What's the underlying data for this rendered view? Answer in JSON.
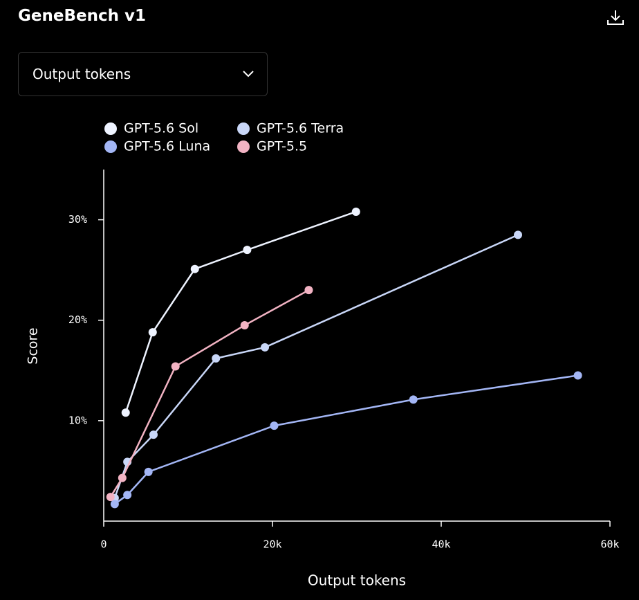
{
  "controls": {
    "metric": "Output tokens"
  },
  "chart_data": {
    "type": "line",
    "title": "GeneBench v1",
    "x_label": "Output tokens",
    "y_label": "Score",
    "xlim": [
      0,
      60000
    ],
    "ylim": [
      0,
      35
    ],
    "xticks": [
      0,
      {
        "value": 20000,
        "label": "20k"
      },
      {
        "value": 40000,
        "label": "40k"
      },
      {
        "value": 60000,
        "label": "60k"
      }
    ],
    "yticks": [
      {
        "value": 10,
        "label": "10%"
      },
      {
        "value": 20,
        "label": "20%"
      },
      {
        "value": 30,
        "label": "30%"
      }
    ],
    "series": [
      {
        "name": "GPT-5.6 Sol",
        "color": "#eef3ff",
        "x": [
          2600,
          5800,
          10800,
          17000,
          29900
        ],
        "values": [
          10.8,
          18.8,
          25.1,
          27.0,
          30.8
        ]
      },
      {
        "name": "GPT-5.6 Terra",
        "color": "#c9d7f8",
        "x": [
          1300,
          2800,
          5900,
          13300,
          19100,
          49100
        ],
        "values": [
          2.3,
          5.9,
          8.6,
          16.2,
          17.3,
          28.5
        ]
      },
      {
        "name": "GPT-5.6 Luna",
        "color": "#a3b6f5",
        "x": [
          1300,
          2800,
          5300,
          20200,
          36700,
          56200
        ],
        "values": [
          1.7,
          2.6,
          4.9,
          9.5,
          12.1,
          14.5
        ]
      },
      {
        "name": "GPT-5.5",
        "color": "#f2b3c3",
        "x": [
          800,
          2200,
          8500,
          16700,
          24300
        ],
        "values": [
          2.4,
          4.3,
          15.4,
          19.5,
          23.0
        ]
      }
    ]
  }
}
